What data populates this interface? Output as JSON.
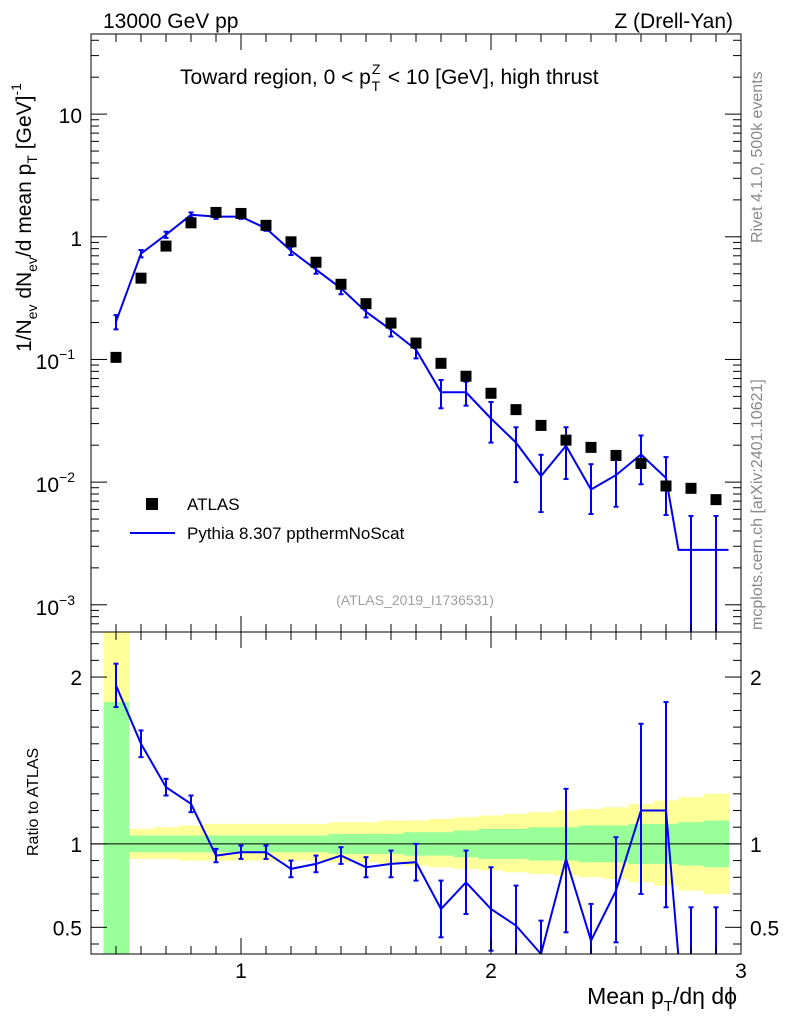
{
  "header": {
    "left": "13000 GeV pp",
    "right": "Z (Drell-Yan)"
  },
  "side_labels": {
    "rivet": "Rivet 4.1.0,  500k events",
    "source": "mcplots.cern.ch [arXiv:2401.10621]"
  },
  "chart_data": [
    {
      "type": "scatter",
      "panel": "main",
      "title": "Toward region, 0 < p_T^Z < 10 [GeV], high thrust",
      "ylabel": "1/N_ev dN_ev/d mean p_T [GeV]^-1",
      "yscale": "log",
      "xlim": [
        0.4,
        3.0
      ],
      "ylim": [
        0.0006,
        45
      ],
      "y_tick_labels": [
        "10^-3",
        "10^-2",
        "10^-1",
        "1",
        "10"
      ],
      "reference": "(ATLAS_2019_I1736531)",
      "legend": [
        "ATLAS",
        "Pythia 8.307 ppthermNoScat"
      ],
      "legend_position": "bottom-left",
      "x": [
        0.5,
        0.6,
        0.7,
        0.8,
        0.9,
        1.0,
        1.1,
        1.2,
        1.3,
        1.4,
        1.5,
        1.6,
        1.7,
        1.8,
        1.9,
        2.0,
        2.1,
        2.2,
        2.3,
        2.4,
        2.5,
        2.6,
        2.7,
        2.8,
        2.9
      ],
      "series": [
        {
          "name": "ATLAS",
          "values": [
            0.104,
            0.46,
            0.84,
            1.3,
            1.58,
            1.55,
            1.24,
            0.91,
            0.62,
            0.41,
            0.285,
            0.198,
            0.136,
            0.093,
            0.073,
            0.053,
            0.039,
            0.029,
            0.022,
            0.0192,
            0.0165,
            0.0142,
            0.0093,
            0.0089,
            0.0072
          ]
        },
        {
          "name": "Pythia 8.307 ppthermNoScat",
          "values": [
            0.203,
            0.73,
            1.04,
            1.51,
            1.46,
            1.46,
            1.17,
            0.77,
            0.54,
            0.38,
            0.245,
            0.174,
            0.12,
            0.054,
            0.054,
            0.033,
            0.021,
            0.0112,
            0.0198,
            0.0087,
            0.0114,
            0.0168,
            0.0108,
            0.0028,
            0.0028
          ],
          "err_low": [
            0.027,
            0.05,
            0.06,
            0.07,
            0.06,
            0.06,
            0.05,
            0.06,
            0.04,
            0.04,
            0.025,
            0.02,
            0.018,
            0.014,
            0.012,
            0.012,
            0.011,
            0.0055,
            0.0092,
            0.0032,
            0.0051,
            0.0072,
            0.0054,
            0.0028,
            0.0028
          ],
          "err_high": [
            0.027,
            0.05,
            0.06,
            0.07,
            0.06,
            0.06,
            0.05,
            0.06,
            0.04,
            0.04,
            0.025,
            0.02,
            0.018,
            0.014,
            0.012,
            0.012,
            0.007,
            0.0055,
            0.0082,
            0.0053,
            0.0056,
            0.0072,
            0.0052,
            0.0025,
            0.0025
          ]
        }
      ]
    },
    {
      "type": "line",
      "panel": "ratio",
      "ylabel": "Ratio to ATLAS",
      "xlabel": "Mean p_T/dη dϕ",
      "xlim": [
        0.4,
        3.0
      ],
      "ylim": [
        0.34,
        2.27
      ],
      "x_ticks": [
        1,
        2,
        3
      ],
      "y_ticks": [
        0.5,
        1,
        2
      ],
      "reference_line": 1,
      "bands": {
        "bin_edges": [
          0.45,
          0.55,
          0.65,
          0.75,
          0.85,
          0.95,
          1.05,
          1.15,
          1.25,
          1.35,
          1.45,
          1.55,
          1.65,
          1.75,
          1.85,
          1.95,
          2.05,
          2.15,
          2.25,
          2.35,
          2.45,
          2.55,
          2.65,
          2.75,
          2.85,
          2.95
        ],
        "green_low": [
          0.3,
          0.95,
          0.95,
          0.95,
          0.95,
          0.95,
          0.95,
          0.95,
          0.95,
          0.94,
          0.94,
          0.94,
          0.93,
          0.93,
          0.92,
          0.91,
          0.91,
          0.9,
          0.9,
          0.89,
          0.89,
          0.88,
          0.88,
          0.87,
          0.86
        ],
        "green_high": [
          1.85,
          1.05,
          1.05,
          1.05,
          1.05,
          1.05,
          1.05,
          1.05,
          1.05,
          1.06,
          1.06,
          1.06,
          1.07,
          1.07,
          1.08,
          1.09,
          1.09,
          1.1,
          1.1,
          1.11,
          1.11,
          1.12,
          1.12,
          1.13,
          1.14
        ],
        "yellow_low": [
          0.3,
          0.91,
          0.91,
          0.9,
          0.9,
          0.9,
          0.9,
          0.9,
          0.9,
          0.89,
          0.89,
          0.88,
          0.87,
          0.86,
          0.85,
          0.84,
          0.83,
          0.82,
          0.81,
          0.8,
          0.79,
          0.77,
          0.75,
          0.72,
          0.7
        ],
        "yellow_high": [
          2.27,
          1.09,
          1.1,
          1.11,
          1.12,
          1.12,
          1.12,
          1.12,
          1.12,
          1.13,
          1.13,
          1.14,
          1.14,
          1.15,
          1.16,
          1.17,
          1.18,
          1.19,
          1.2,
          1.21,
          1.22,
          1.24,
          1.26,
          1.28,
          1.3
        ]
      },
      "series": [
        {
          "name": "Pythia 8.307 ppthermNoScat / ATLAS",
          "values": [
            1.95,
            1.6,
            1.34,
            1.24,
            0.93,
            0.95,
            0.95,
            0.85,
            0.88,
            0.93,
            0.86,
            0.88,
            0.89,
            0.61,
            0.77,
            0.61,
            0.51,
            0.34,
            0.91,
            0.42,
            0.72,
            1.2,
            1.2,
            0.32,
            0.32
          ],
          "err_low": [
            0.13,
            0.08,
            0.05,
            0.05,
            0.04,
            0.04,
            0.04,
            0.05,
            0.05,
            0.05,
            0.06,
            0.08,
            0.11,
            0.17,
            0.19,
            0.25,
            0.24,
            0.2,
            0.44,
            0.14,
            0.31,
            0.5,
            0.58,
            0.3,
            0.3
          ],
          "err_high": [
            0.13,
            0.08,
            0.05,
            0.05,
            0.04,
            0.04,
            0.04,
            0.05,
            0.05,
            0.05,
            0.06,
            0.08,
            0.11,
            0.17,
            0.19,
            0.25,
            0.24,
            0.2,
            0.42,
            0.22,
            0.32,
            0.52,
            0.65,
            0.3,
            0.3
          ]
        }
      ]
    }
  ]
}
